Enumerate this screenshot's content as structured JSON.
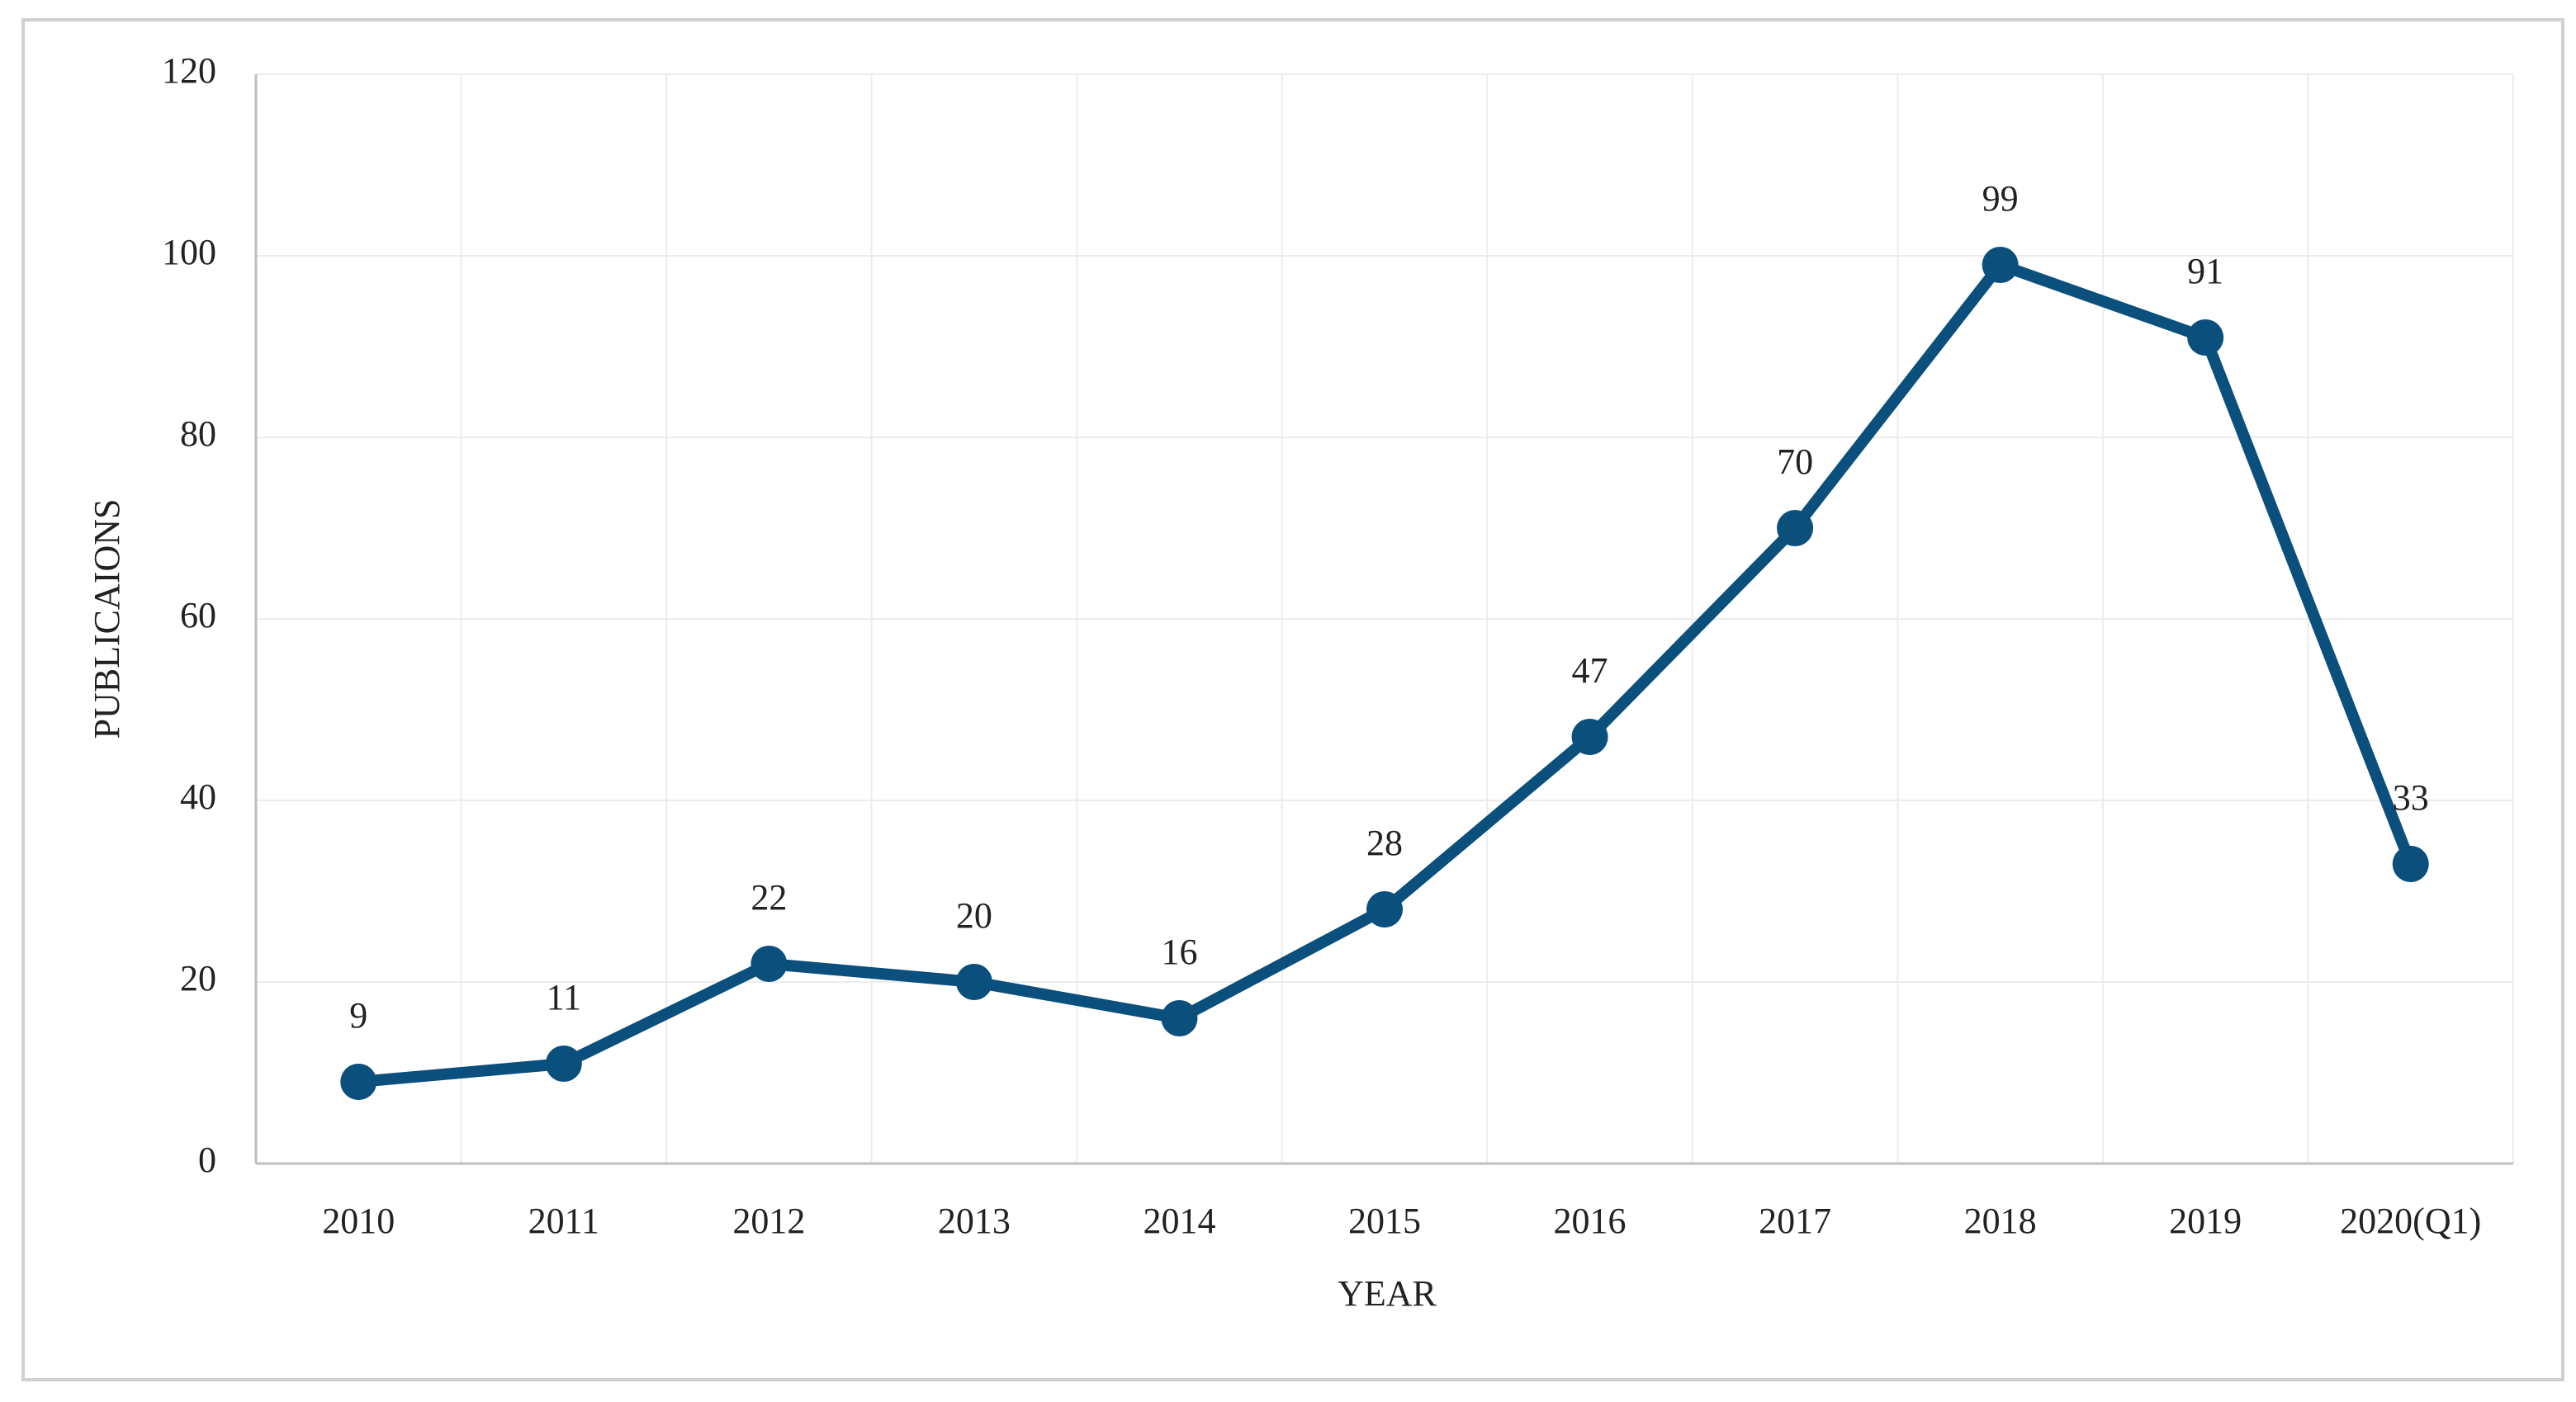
{
  "chart_data": {
    "type": "line",
    "x_label": "YEAR",
    "y_label": "PUBLICAIONS",
    "categories": [
      "2010",
      "2011",
      "2012",
      "2013",
      "2014",
      "2015",
      "2016",
      "2017",
      "2018",
      "2019",
      "2020(Q1)"
    ],
    "values": [
      9,
      11,
      22,
      20,
      16,
      28,
      47,
      70,
      99,
      91,
      33
    ],
    "color": "#0b4f7c",
    "ylim": [
      0,
      120
    ],
    "yticks": [
      0,
      20,
      40,
      60,
      80,
      100,
      120
    ],
    "grid": true,
    "data_labels": true
  }
}
